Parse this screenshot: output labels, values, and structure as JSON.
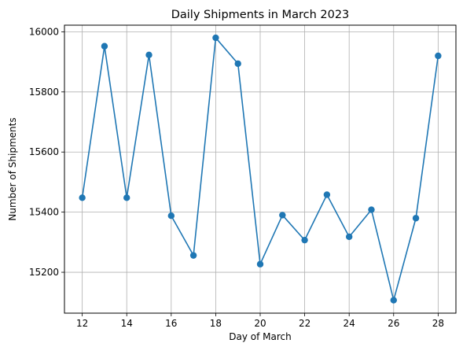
{
  "chart_data": {
    "type": "line",
    "title": "Daily Shipments in March 2023",
    "xlabel": "Day of March",
    "ylabel": "Number of Shipments",
    "xlim": [
      11.2,
      28.8
    ],
    "ylim": [
      15064,
      16022
    ],
    "xticks": [
      12,
      14,
      16,
      18,
      20,
      22,
      24,
      26,
      28
    ],
    "yticks": [
      15200,
      15400,
      15600,
      15800,
      16000
    ],
    "grid": true,
    "line_color": "#1f77b4",
    "series": [
      {
        "x": [
          12,
          13,
          14,
          15,
          16,
          17,
          18,
          19,
          20,
          21,
          22,
          23,
          24,
          25,
          26,
          27,
          28
        ],
        "values": [
          15448,
          15952,
          15448,
          15923,
          15388,
          15256,
          15980,
          15894,
          15227,
          15390,
          15307,
          15458,
          15318,
          15408,
          15107,
          15380,
          15920
        ]
      }
    ]
  }
}
